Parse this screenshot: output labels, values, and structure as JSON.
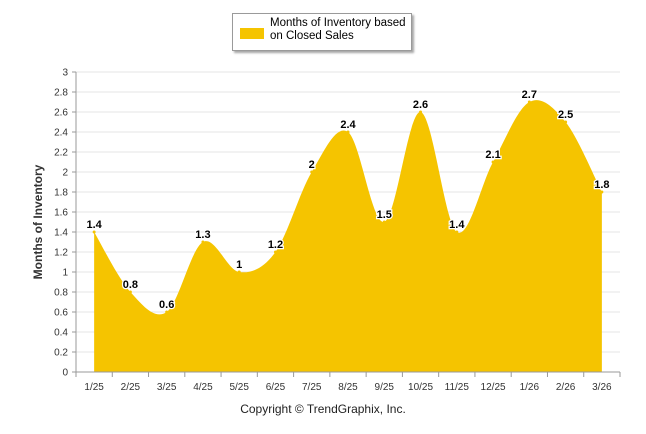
{
  "legend": {
    "label": "Months of Inventory based on Closed Sales"
  },
  "copyright": "Copyright © TrendGraphix, Inc.",
  "colors": {
    "area": "#F5C400",
    "grid": "#e6e6e6",
    "axis": "#999999"
  },
  "chart_data": {
    "type": "area",
    "title": "",
    "xlabel": "",
    "ylabel": "Months of Inventory",
    "ylim": [
      0,
      3
    ],
    "yticks": [
      "0",
      "0.2",
      "0.4",
      "0.6",
      "0.8",
      "1",
      "1.2",
      "1.4",
      "1.6",
      "1.8",
      "2",
      "2.2",
      "2.4",
      "2.6",
      "2.8",
      "3"
    ],
    "grid": true,
    "legend_position": "top-center",
    "categories": [
      "1/25",
      "2/25",
      "3/25",
      "4/25",
      "5/25",
      "6/25",
      "7/25",
      "8/25",
      "9/25",
      "10/25",
      "11/25",
      "12/25",
      "1/26",
      "2/26",
      "3/26"
    ],
    "series": [
      {
        "name": "Months of Inventory based on Closed Sales",
        "values": [
          1.4,
          0.8,
          0.6,
          1.3,
          1,
          1.2,
          2,
          2.4,
          1.5,
          2.6,
          1.4,
          2.1,
          2.7,
          2.5,
          1.8
        ],
        "data_labels": [
          "1.4",
          "0.8",
          "0.6",
          "1.3",
          "1",
          "1.2",
          "2",
          "2.4",
          "1.5",
          "2.6",
          "1.4",
          "2.1",
          "2.7",
          "2.5",
          "1.8"
        ]
      }
    ]
  }
}
